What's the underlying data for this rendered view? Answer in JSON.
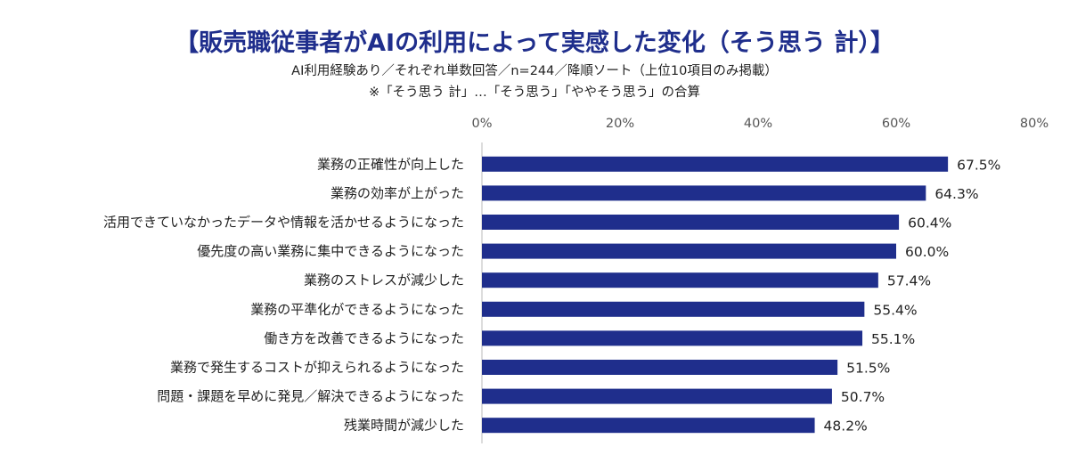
{
  "title": "【販売職従事者がAIの利用によって実感した変化（そう思う 計）】",
  "subtitle": "AI利用経験あり／それぞれ単数回答／n=244／降順ソート（上位10項目のみ掲載）",
  "note": "※「そう思う 計」…「そう思う」「ややそう思う」の合算",
  "colors": {
    "bar": "#1f2e8c",
    "axis": "#bbbbbb"
  },
  "chart_data": {
    "type": "bar",
    "orientation": "horizontal",
    "categories": [
      "業務の正確性が向上した",
      "業務の効率が上がった",
      "活用できていなかったデータや情報を活かせるようになった",
      "優先度の高い業務に集中できるようになった",
      "業務のストレスが減少した",
      "業務の平準化ができるようになった",
      "働き方を改善できるようになった",
      "業務で発生するコストが抑えられるようになった",
      "問題・課題を早めに発見／解決できるようになった",
      "残業時間が減少した"
    ],
    "values": [
      67.5,
      64.3,
      60.4,
      60.0,
      57.4,
      55.4,
      55.1,
      51.5,
      50.7,
      48.2
    ],
    "value_labels": [
      "67.5%",
      "64.3%",
      "60.4%",
      "60.0%",
      "57.4%",
      "55.4%",
      "55.1%",
      "51.5%",
      "50.7%",
      "48.2%"
    ],
    "xlim": [
      0,
      80
    ],
    "ticks": [
      0,
      20,
      40,
      60,
      80
    ],
    "tick_labels": [
      "0%",
      "20%",
      "40%",
      "60%",
      "80%"
    ],
    "grid": false,
    "axis_position": "top"
  }
}
